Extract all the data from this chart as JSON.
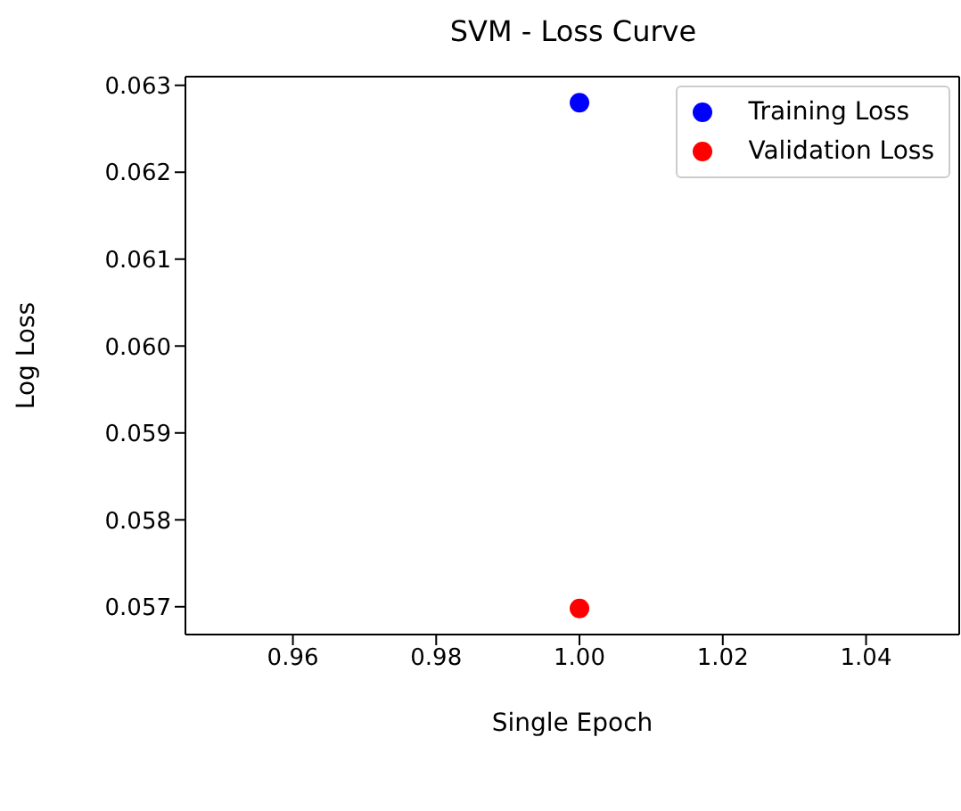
{
  "chart_data": {
    "type": "scatter",
    "title": "SVM - Loss Curve",
    "xlabel": "Single Epoch",
    "ylabel": "Log Loss",
    "xlim": [
      0.945,
      1.053
    ],
    "xticks": [
      {
        "value": 0.96,
        "label": "0.96"
      },
      {
        "value": 0.98,
        "label": "0.98"
      },
      {
        "value": 1.0,
        "label": "1.00"
      },
      {
        "value": 1.02,
        "label": "1.02"
      },
      {
        "value": 1.04,
        "label": "1.04"
      }
    ],
    "ylim": [
      0.05668,
      0.0631
    ],
    "yticks": [
      {
        "value": 0.057,
        "label": "0.057"
      },
      {
        "value": 0.058,
        "label": "0.058"
      },
      {
        "value": 0.059,
        "label": "0.059"
      },
      {
        "value": 0.06,
        "label": "0.060"
      },
      {
        "value": 0.061,
        "label": "0.061"
      },
      {
        "value": 0.062,
        "label": "0.062"
      },
      {
        "value": 0.063,
        "label": "0.063"
      }
    ],
    "x": [
      1.0
    ],
    "series": [
      {
        "name": "Training Loss",
        "color": "#0000ff",
        "values": [
          0.0628
        ]
      },
      {
        "name": "Validation Loss",
        "color": "#ff0000",
        "values": [
          0.05698
        ]
      }
    ],
    "legend": "top right",
    "marker": "circle"
  }
}
